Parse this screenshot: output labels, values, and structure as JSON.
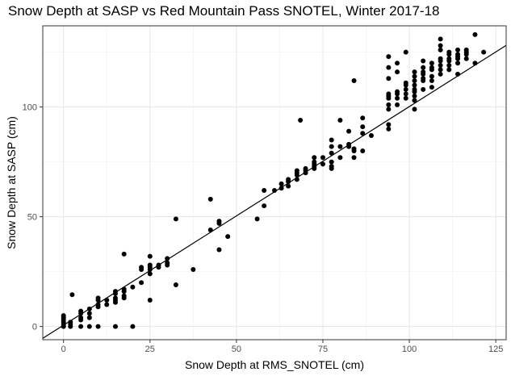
{
  "chart_data": {
    "type": "scatter",
    "title": "Snow Depth at SASP vs Red Mountain Pass SNOTEL, Winter 2017-18",
    "xlabel": "Snow Depth at RMS_SNOTEL (cm)",
    "ylabel": "Snow Depth at SASP (cm)",
    "xlim": [
      -6,
      128
    ],
    "ylim": [
      -6,
      137
    ],
    "x_ticks": [
      0,
      25,
      50,
      75,
      100,
      125
    ],
    "y_ticks": [
      0,
      50,
      100
    ],
    "x_tick_labels": [
      "0",
      "25",
      "50",
      "75",
      "100",
      "125"
    ],
    "y_tick_labels": [
      "0",
      "50",
      "100"
    ],
    "grid": true,
    "theme": "bw",
    "point_color": "#000000",
    "fit_line": {
      "intercept": 0.6,
      "slope": 0.996,
      "color": "#000000"
    },
    "points": [
      [
        0,
        0
      ],
      [
        0,
        1
      ],
      [
        0,
        2
      ],
      [
        0,
        3
      ],
      [
        0,
        4
      ],
      [
        0,
        5
      ],
      [
        2,
        0
      ],
      [
        2,
        1
      ],
      [
        2,
        2
      ],
      [
        2.5,
        14.5
      ],
      [
        5,
        0
      ],
      [
        5,
        3
      ],
      [
        5,
        4
      ],
      [
        5,
        6
      ],
      [
        5,
        7
      ],
      [
        7.5,
        0
      ],
      [
        7.5,
        4
      ],
      [
        7.5,
        6
      ],
      [
        7.5,
        8
      ],
      [
        10,
        0
      ],
      [
        10,
        9
      ],
      [
        10,
        10
      ],
      [
        10,
        12
      ],
      [
        10,
        13
      ],
      [
        12.5,
        10
      ],
      [
        12.5,
        12
      ],
      [
        15,
        0
      ],
      [
        15,
        11
      ],
      [
        15,
        12
      ],
      [
        15,
        13
      ],
      [
        15,
        15
      ],
      [
        15,
        16
      ],
      [
        17.5,
        13
      ],
      [
        17.5,
        14
      ],
      [
        17.5,
        16
      ],
      [
        17.5,
        17
      ],
      [
        17.5,
        33
      ],
      [
        20,
        0
      ],
      [
        20,
        18
      ],
      [
        22.5,
        20
      ],
      [
        22.5,
        26
      ],
      [
        22.5,
        27
      ],
      [
        25,
        12
      ],
      [
        25,
        24
      ],
      [
        25,
        26
      ],
      [
        25,
        27
      ],
      [
        25,
        28
      ],
      [
        25,
        32
      ],
      [
        27.5,
        27
      ],
      [
        27.5,
        28
      ],
      [
        30,
        28
      ],
      [
        30,
        29
      ],
      [
        30,
        31
      ],
      [
        32.5,
        19
      ],
      [
        32.5,
        49
      ],
      [
        37.5,
        26
      ],
      [
        42.5,
        44
      ],
      [
        42.5,
        58
      ],
      [
        45,
        35
      ],
      [
        45,
        47
      ],
      [
        45,
        48
      ],
      [
        47.5,
        41
      ],
      [
        56,
        49
      ],
      [
        58,
        55
      ],
      [
        58,
        62
      ],
      [
        61,
        62
      ],
      [
        63,
        63
      ],
      [
        63,
        65
      ],
      [
        65,
        64
      ],
      [
        65,
        66
      ],
      [
        65,
        67
      ],
      [
        67.5,
        67
      ],
      [
        67.5,
        69
      ],
      [
        67.5,
        70
      ],
      [
        67.5,
        71
      ],
      [
        68.5,
        94
      ],
      [
        70,
        70
      ],
      [
        70,
        71
      ],
      [
        70,
        72
      ],
      [
        72.5,
        72
      ],
      [
        72.5,
        73
      ],
      [
        72.5,
        74
      ],
      [
        72.5,
        75
      ],
      [
        72.5,
        77
      ],
      [
        75,
        74
      ],
      [
        75,
        77
      ],
      [
        77.5,
        72
      ],
      [
        77.5,
        73
      ],
      [
        77.5,
        75
      ],
      [
        77.5,
        79
      ],
      [
        77.5,
        82
      ],
      [
        77.5,
        85
      ],
      [
        80,
        77
      ],
      [
        80,
        82
      ],
      [
        80,
        94
      ],
      [
        82.5,
        82
      ],
      [
        82.5,
        83
      ],
      [
        82.5,
        89
      ],
      [
        84,
        77
      ],
      [
        84,
        80
      ],
      [
        84,
        81
      ],
      [
        84,
        112
      ],
      [
        86.5,
        80
      ],
      [
        86.5,
        88
      ],
      [
        86.5,
        91
      ],
      [
        86.5,
        95
      ],
      [
        89,
        87
      ],
      [
        94,
        90
      ],
      [
        94,
        92
      ],
      [
        94,
        99
      ],
      [
        94,
        101
      ],
      [
        94,
        104
      ],
      [
        94,
        105
      ],
      [
        94,
        106
      ],
      [
        94,
        113
      ],
      [
        94,
        118
      ],
      [
        94,
        123
      ],
      [
        96.5,
        101
      ],
      [
        96.5,
        104
      ],
      [
        96.5,
        106
      ],
      [
        96.5,
        107
      ],
      [
        96.5,
        116
      ],
      [
        96.5,
        120
      ],
      [
        99,
        104
      ],
      [
        99,
        106
      ],
      [
        99,
        108
      ],
      [
        99,
        110
      ],
      [
        99,
        111
      ],
      [
        99,
        125
      ],
      [
        101.5,
        99
      ],
      [
        101.5,
        103
      ],
      [
        101.5,
        105
      ],
      [
        101.5,
        107
      ],
      [
        101.5,
        108
      ],
      [
        101.5,
        110
      ],
      [
        101.5,
        112
      ],
      [
        101.5,
        114
      ],
      [
        101.5,
        116
      ],
      [
        104,
        108
      ],
      [
        104,
        112
      ],
      [
        104,
        113
      ],
      [
        104,
        115
      ],
      [
        104,
        116
      ],
      [
        104,
        118
      ],
      [
        104,
        121
      ],
      [
        106.5,
        109
      ],
      [
        106.5,
        112
      ],
      [
        106.5,
        114
      ],
      [
        106.5,
        117
      ],
      [
        106.5,
        118
      ],
      [
        106.5,
        120
      ],
      [
        109,
        115
      ],
      [
        109,
        117
      ],
      [
        109,
        119
      ],
      [
        109,
        121
      ],
      [
        109,
        122
      ],
      [
        109,
        126
      ],
      [
        109,
        128
      ],
      [
        109,
        131
      ],
      [
        111.5,
        117
      ],
      [
        111.5,
        119
      ],
      [
        111.5,
        121
      ],
      [
        111.5,
        122
      ],
      [
        111.5,
        124
      ],
      [
        111.5,
        125
      ],
      [
        114,
        115
      ],
      [
        114,
        120
      ],
      [
        114,
        122
      ],
      [
        114,
        123
      ],
      [
        114,
        124
      ],
      [
        114,
        126
      ],
      [
        116.5,
        122
      ],
      [
        116.5,
        124
      ],
      [
        116.5,
        125
      ],
      [
        116.5,
        126
      ],
      [
        119,
        120
      ],
      [
        119,
        133
      ],
      [
        121.5,
        125
      ]
    ]
  }
}
